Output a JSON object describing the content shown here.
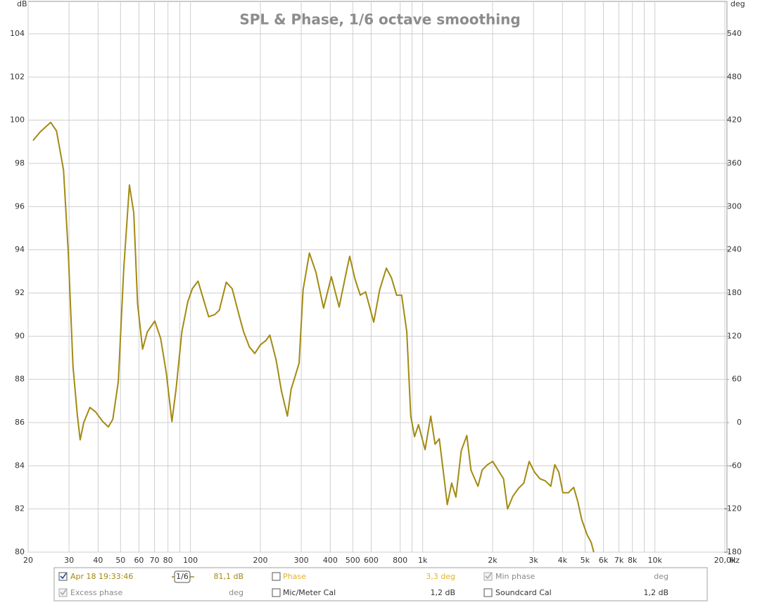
{
  "chart_data": {
    "type": "line",
    "title": "SPL & Phase, 1/6 octave smoothing",
    "y_unit": "dB",
    "y2_unit": "deg",
    "x_unit": "Hz",
    "log_x": true,
    "grid": true,
    "xlim": [
      20,
      20000
    ],
    "ylim": [
      80,
      105.5
    ],
    "y2lim": [
      -180,
      585
    ],
    "xticks": [
      20,
      30,
      40,
      50,
      60,
      70,
      80,
      100,
      200,
      300,
      400,
      500,
      600,
      800,
      {
        "value": 1000,
        "label": "1k"
      },
      {
        "value": 2000,
        "label": "2k"
      },
      {
        "value": 3000,
        "label": "3k"
      },
      {
        "value": 4000,
        "label": "4k"
      },
      {
        "value": 5000,
        "label": "5k"
      },
      {
        "value": 6000,
        "label": "6k"
      },
      {
        "value": 7000,
        "label": "7k"
      },
      {
        "value": 8000,
        "label": "8k"
      },
      {
        "value": 10000,
        "label": "10k"
      },
      {
        "value": 20000,
        "label": "20,0k"
      }
    ],
    "x_minor_grid": [
      90,
      900,
      9000
    ],
    "yticks": [
      80,
      82,
      84,
      86,
      88,
      90,
      92,
      94,
      96,
      98,
      100,
      102,
      104
    ],
    "y2ticks": [
      -180,
      -120,
      -60,
      0,
      60,
      120,
      180,
      240,
      300,
      360,
      420,
      480,
      540
    ],
    "x": [
      21,
      22.5,
      25,
      26.5,
      28.4,
      29.8,
      31.2,
      32.6,
      33.5,
      34.7,
      36.9,
      39,
      41.9,
      44.3,
      46.3,
      48.9,
      51.6,
      54.6,
      57,
      59.2,
      62.2,
      65.2,
      70.2,
      74.4,
      78.7,
      83.2,
      86.8,
      91.8,
      97.4,
      101.9,
      107.8,
      113.8,
      119.8,
      127.2,
      133.1,
      142.6,
      151.2,
      162.6,
      169.4,
      179.4,
      189.2,
      200,
      211.4,
      219.6,
      233.8,
      246.6,
      261.5,
      271.4,
      282.4,
      293.6,
      305.5,
      325.2,
      347.2,
      374.2,
      404.3,
      436.8,
      465.4,
      484.8,
      511,
      538.6,
      567.7,
      615.3,
      652.8,
      697.6,
      733.9,
      772.1,
      811.6,
      854.1,
      888.6,
      922.3,
      959.2,
      1024,
      1083,
      1131,
      1179,
      1228,
      1276,
      1333,
      1390,
      1466,
      1549,
      1614,
      1730,
      1803,
      1900,
      2003,
      2113,
      2229,
      2320,
      2448,
      2583,
      2725,
      2874,
      3032,
      3199,
      3375,
      3561,
      3706,
      3858,
      4016,
      4237,
      4470,
      4653,
      4843,
      5109,
      5318,
      5453
    ],
    "series": [
      {
        "name": "Apr 18 19:33:46",
        "color": "#a38a12",
        "values": [
          99.06,
          99.45,
          99.9,
          99.5,
          97.7,
          93.8,
          88.6,
          86.3,
          85.2,
          86,
          86.7,
          86.5,
          86.05,
          85.8,
          86.15,
          87.9,
          93.1,
          97,
          95.7,
          91.5,
          89.4,
          90.2,
          90.7,
          89.9,
          88.3,
          86.05,
          87.6,
          90.2,
          91.6,
          92.2,
          92.55,
          91.7,
          90.9,
          91,
          91.2,
          92.5,
          92.2,
          90.9,
          90.2,
          89.5,
          89.2,
          89.6,
          89.8,
          90.05,
          88.9,
          87.45,
          86.3,
          87.55,
          88.15,
          88.75,
          92.15,
          93.85,
          92.95,
          91.3,
          92.75,
          91.35,
          92.8,
          93.7,
          92.65,
          91.9,
          92.05,
          90.65,
          92.15,
          93.15,
          92.7,
          91.9,
          91.9,
          90.2,
          86.3,
          85.35,
          85.9,
          84.75,
          86.3,
          85,
          85.25,
          83.7,
          82.2,
          83.2,
          82.55,
          84.7,
          85.4,
          83.8,
          83.05,
          83.8,
          84.05,
          84.2,
          83.8,
          83.4,
          82,
          82.6,
          82.95,
          83.2,
          84.2,
          83.7,
          83.4,
          83.3,
          83.05,
          84.05,
          83.7,
          82.75,
          82.75,
          83,
          82.35,
          81.5,
          80.8,
          80.45,
          80
        ]
      }
    ]
  },
  "panel": {
    "smoothing": "1/6",
    "spl_readout": "81,1 dB",
    "phase_label": "Phase",
    "phase_readout": "3,3 deg",
    "min_phase_label": "Min phase",
    "min_phase_readout": "deg",
    "excess_phase_label": "Excess phase",
    "excess_phase_readout": "deg",
    "mic_cal_label": "Mic/Meter Cal",
    "mic_cal_readout": "1,2 dB",
    "soundcard_cal_label": "Soundcard Cal",
    "soundcard_cal_readout": "1,2 dB"
  }
}
